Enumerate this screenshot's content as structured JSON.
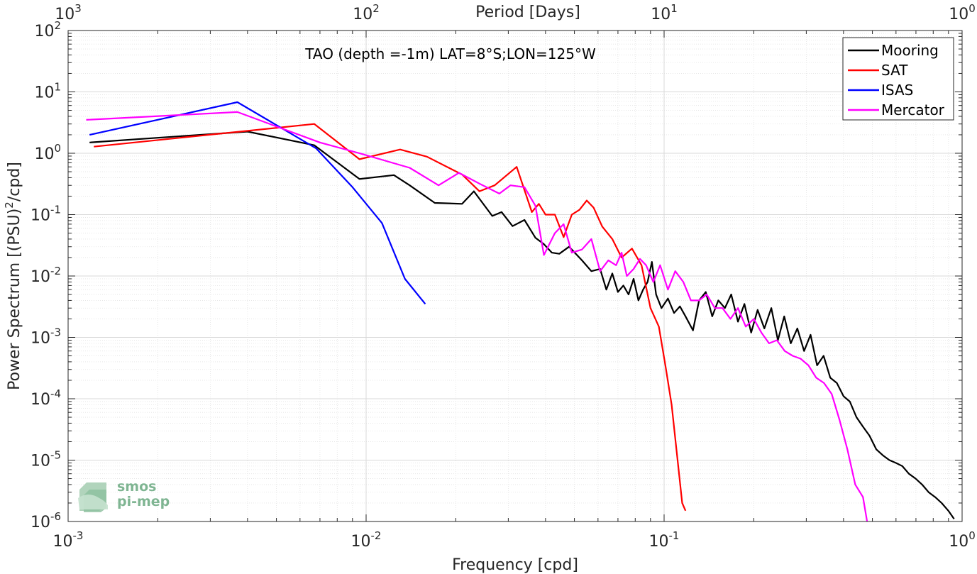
{
  "chart_data": {
    "type": "line",
    "title": "TAO (depth =-1m) LAT=8°S;LON=125°W",
    "xlabel": "Frequency [cpd]",
    "ylabel_main": "Power Spectrum [(PSU)",
    "ylabel_sup": "2",
    "ylabel_tail": "/cpd]",
    "top_xlabel": "Period [Days]",
    "xscale": "log",
    "yscale": "log",
    "xlim": [
      0.001,
      1
    ],
    "ylim": [
      1e-06,
      100
    ],
    "grid": true,
    "legend_position": "top-right",
    "x_ticks": [
      {
        "value": 0.001,
        "base": "10",
        "exp": "-3"
      },
      {
        "value": 0.01,
        "base": "10",
        "exp": "-2"
      },
      {
        "value": 0.1,
        "base": "10",
        "exp": "-1"
      },
      {
        "value": 1,
        "base": "10",
        "exp": "0"
      }
    ],
    "top_ticks": [
      {
        "value": 0.001,
        "base": "10",
        "exp": "3"
      },
      {
        "value": 0.01,
        "base": "10",
        "exp": "2"
      },
      {
        "value": 0.1,
        "base": "10",
        "exp": "1"
      },
      {
        "value": 1,
        "base": "10",
        "exp": "0"
      }
    ],
    "y_ticks": [
      {
        "value": 100,
        "base": "10",
        "exp": "2"
      },
      {
        "value": 10,
        "base": "10",
        "exp": "1"
      },
      {
        "value": 1,
        "base": "10",
        "exp": "0"
      },
      {
        "value": 0.1,
        "base": "10",
        "exp": "-1"
      },
      {
        "value": 0.01,
        "base": "10",
        "exp": "-2"
      },
      {
        "value": 0.001,
        "base": "10",
        "exp": "-3"
      },
      {
        "value": 0.0001,
        "base": "10",
        "exp": "-4"
      },
      {
        "value": 1e-05,
        "base": "10",
        "exp": "-5"
      },
      {
        "value": 1e-06,
        "base": "10",
        "exp": "-6"
      }
    ],
    "series": [
      {
        "name": "Mooring",
        "color": "#000000",
        "x": [
          0.00118,
          0.004,
          0.0067,
          0.0095,
          0.0124,
          0.014,
          0.017,
          0.021,
          0.023,
          0.0265,
          0.0285,
          0.031,
          0.034,
          0.037,
          0.0395,
          0.042,
          0.0445,
          0.048,
          0.053,
          0.057,
          0.061,
          0.064,
          0.067,
          0.07,
          0.073,
          0.076,
          0.079,
          0.082,
          0.085,
          0.088,
          0.091,
          0.094,
          0.098,
          0.103,
          0.108,
          0.113,
          0.118,
          0.125,
          0.131,
          0.138,
          0.145,
          0.152,
          0.16,
          0.168,
          0.177,
          0.186,
          0.196,
          0.206,
          0.217,
          0.229,
          0.241,
          0.253,
          0.266,
          0.28,
          0.295,
          0.31,
          0.326,
          0.343,
          0.361,
          0.38,
          0.4,
          0.42,
          0.442,
          0.465,
          0.489,
          0.515,
          0.542,
          0.57,
          0.6,
          0.63,
          0.663,
          0.698,
          0.734,
          0.772,
          0.812,
          0.854,
          0.899,
          0.94
        ],
        "y": [
          1.5,
          2.25,
          1.35,
          0.38,
          0.44,
          0.3,
          0.155,
          0.15,
          0.24,
          0.095,
          0.11,
          0.065,
          0.082,
          0.042,
          0.033,
          0.024,
          0.023,
          0.03,
          0.018,
          0.012,
          0.013,
          0.006,
          0.011,
          0.0055,
          0.007,
          0.005,
          0.009,
          0.004,
          0.006,
          0.008,
          0.017,
          0.005,
          0.003,
          0.0043,
          0.0025,
          0.0032,
          0.0022,
          0.0013,
          0.004,
          0.0055,
          0.0022,
          0.004,
          0.003,
          0.005,
          0.0018,
          0.0035,
          0.0012,
          0.0028,
          0.0014,
          0.003,
          0.0009,
          0.0022,
          0.0008,
          0.0014,
          0.0006,
          0.0011,
          0.00035,
          0.0005,
          0.00022,
          0.00018,
          0.00011,
          9e-05,
          5e-05,
          3.5e-05,
          2.5e-05,
          1.5e-05,
          1.2e-05,
          1e-05,
          9e-06,
          8e-06,
          6e-06,
          5e-06,
          4e-06,
          3e-06,
          2.5e-06,
          2e-06,
          1.5e-06,
          1.1e-06
        ]
      },
      {
        "name": "SAT",
        "color": "#ff0000",
        "x": [
          0.00122,
          0.0067,
          0.0095,
          0.013,
          0.016,
          0.021,
          0.024,
          0.027,
          0.032,
          0.036,
          0.038,
          0.04,
          0.043,
          0.046,
          0.049,
          0.052,
          0.055,
          0.058,
          0.062,
          0.067,
          0.072,
          0.078,
          0.084,
          0.09,
          0.096,
          0.101,
          0.106,
          0.111,
          0.115,
          0.118
        ],
        "y": [
          1.28,
          3.0,
          0.8,
          1.15,
          0.88,
          0.45,
          0.24,
          0.3,
          0.6,
          0.11,
          0.15,
          0.1,
          0.1,
          0.043,
          0.1,
          0.12,
          0.17,
          0.13,
          0.064,
          0.04,
          0.02,
          0.028,
          0.015,
          0.003,
          0.0015,
          0.00035,
          8e-05,
          1e-05,
          2e-06,
          1.5e-06
        ]
      },
      {
        "name": "ISAS",
        "color": "#0000ff",
        "x": [
          0.00118,
          0.0037,
          0.0068,
          0.009,
          0.0113,
          0.0135,
          0.0158
        ],
        "y": [
          2.0,
          6.8,
          1.2,
          0.28,
          0.073,
          0.009,
          0.0035
        ]
      },
      {
        "name": "Mercator",
        "color": "#ff00ff",
        "x": [
          0.00115,
          0.0037,
          0.007,
          0.0095,
          0.014,
          0.0175,
          0.0205,
          0.024,
          0.028,
          0.0305,
          0.034,
          0.037,
          0.0395,
          0.043,
          0.046,
          0.049,
          0.053,
          0.057,
          0.061,
          0.065,
          0.069,
          0.072,
          0.075,
          0.079,
          0.083,
          0.087,
          0.092,
          0.097,
          0.103,
          0.109,
          0.116,
          0.123,
          0.131,
          0.139,
          0.148,
          0.157,
          0.167,
          0.177,
          0.188,
          0.2,
          0.212,
          0.225,
          0.239,
          0.254,
          0.27,
          0.287,
          0.305,
          0.324,
          0.344,
          0.365,
          0.388,
          0.412,
          0.438,
          0.465,
          0.48
        ],
        "y": [
          3.5,
          4.7,
          1.5,
          1.0,
          0.58,
          0.3,
          0.48,
          0.32,
          0.22,
          0.3,
          0.28,
          0.14,
          0.022,
          0.05,
          0.07,
          0.024,
          0.027,
          0.04,
          0.012,
          0.018,
          0.015,
          0.024,
          0.01,
          0.013,
          0.019,
          0.015,
          0.008,
          0.015,
          0.006,
          0.012,
          0.008,
          0.004,
          0.004,
          0.005,
          0.003,
          0.003,
          0.002,
          0.003,
          0.0015,
          0.002,
          0.0012,
          0.0008,
          0.0009,
          0.0006,
          0.0005,
          0.00045,
          0.00035,
          0.00022,
          0.00018,
          0.00012,
          4.5e-05,
          1.5e-05,
          4e-06,
          2.5e-06,
          1e-06
        ]
      }
    ]
  },
  "logo": {
    "line1": "smos",
    "line2": "pi-mep"
  }
}
